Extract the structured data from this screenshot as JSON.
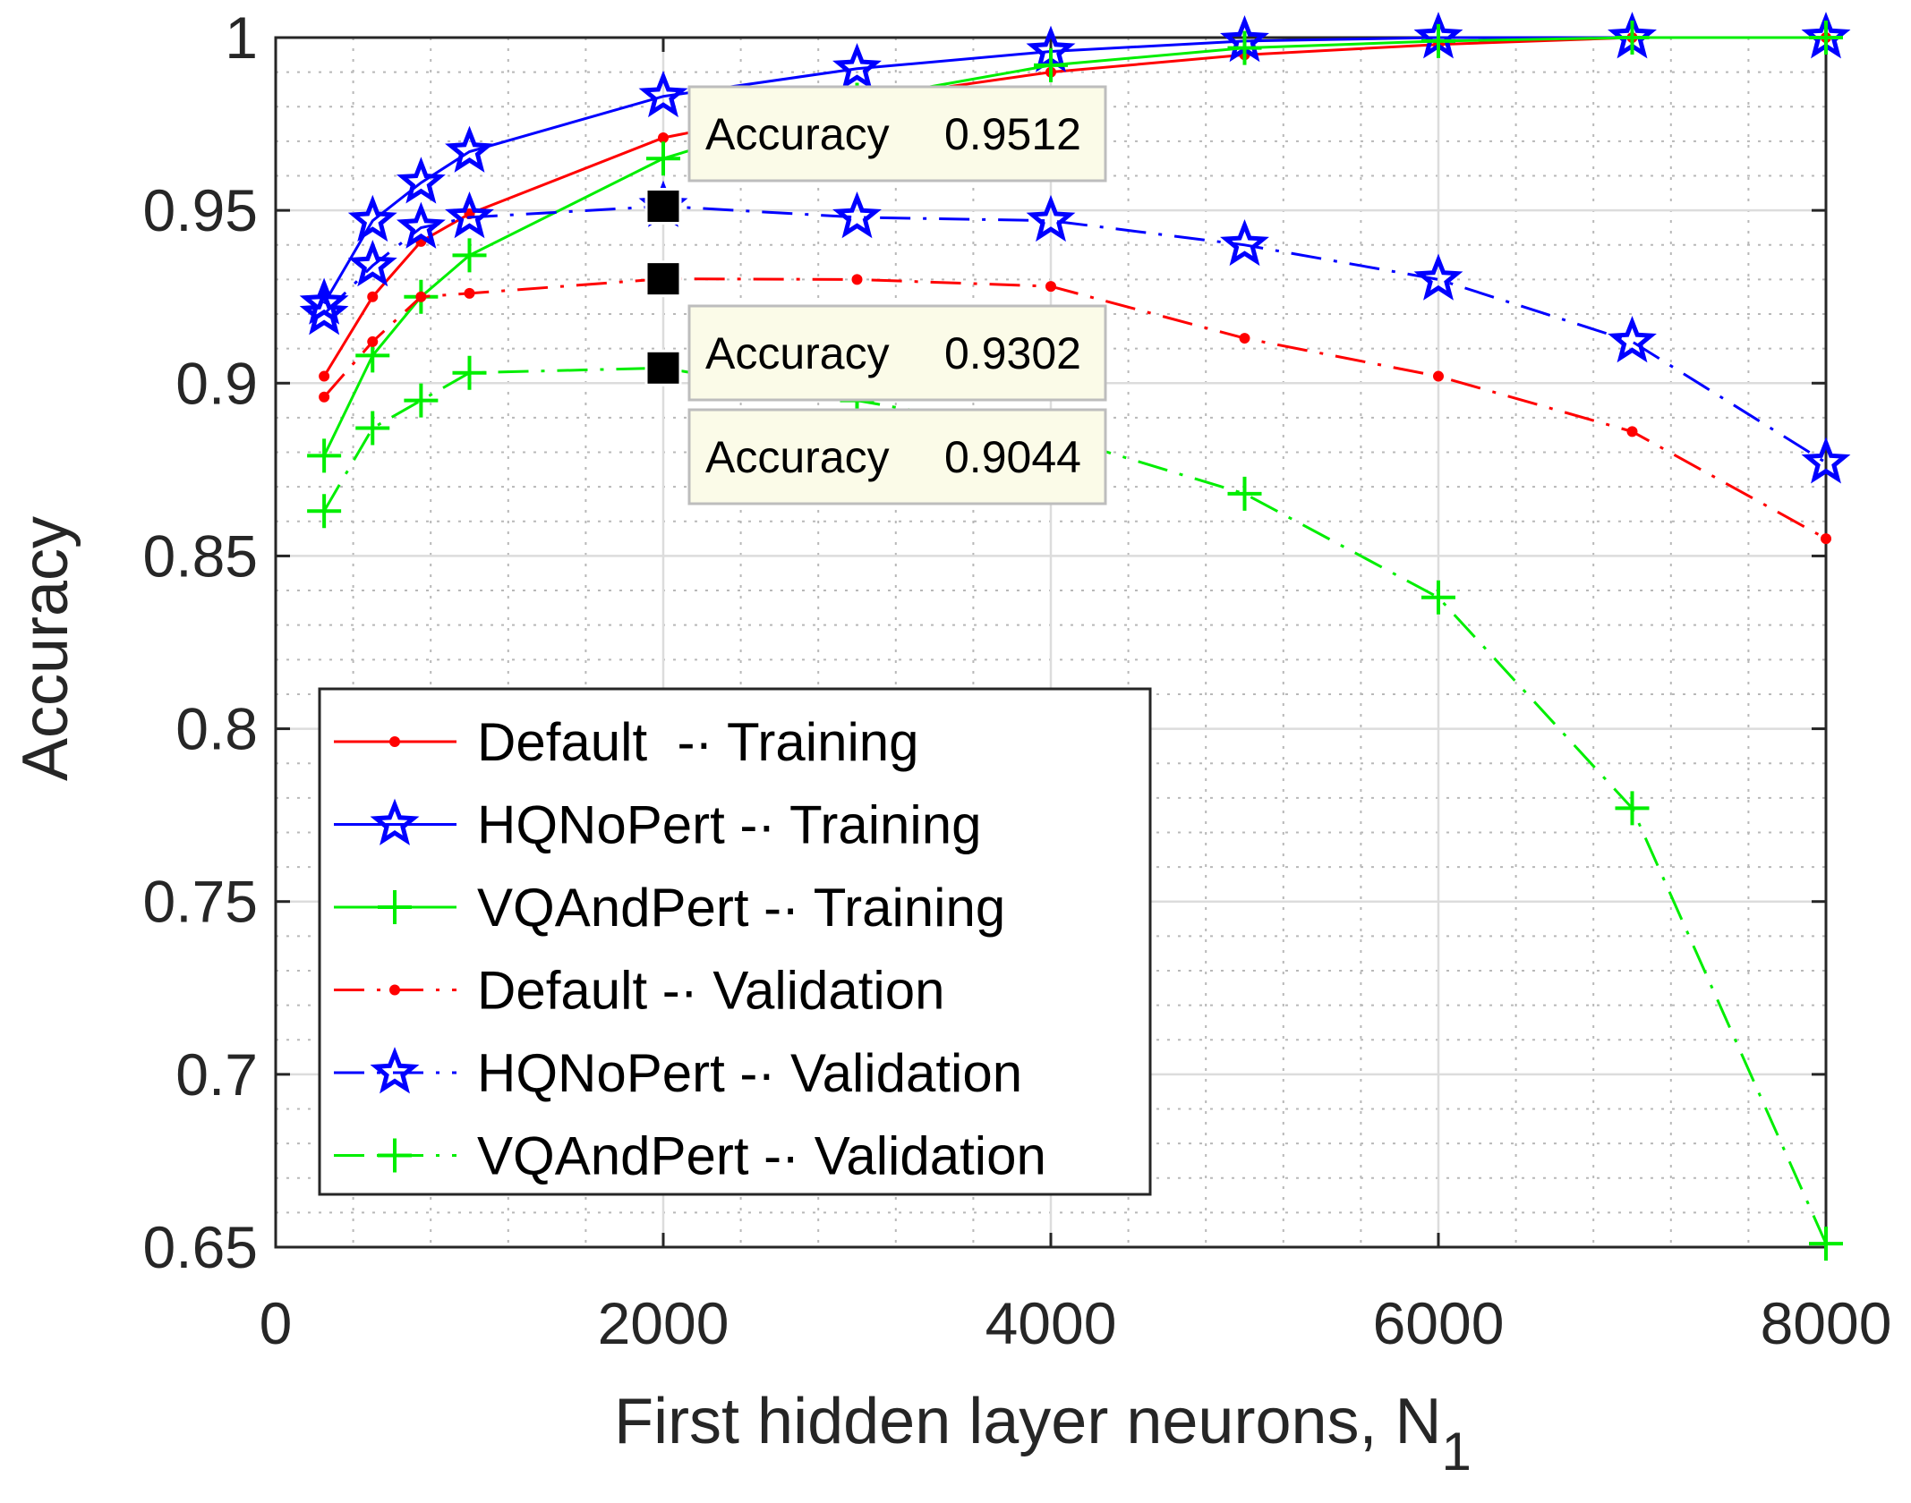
{
  "chart_data": {
    "type": "line",
    "xlabel": "First hidden layer neurons, N",
    "xlabel_subscript": "1",
    "ylabel": "Accuracy",
    "xlim": [
      0,
      8000
    ],
    "ylim": [
      0.65,
      1
    ],
    "xticks": [
      0,
      2000,
      4000,
      6000,
      8000
    ],
    "xtick_labels": [
      "0",
      "2000",
      "4000",
      "6000",
      "8000"
    ],
    "yticks": [
      0.65,
      0.7,
      0.75,
      0.8,
      0.85,
      0.9,
      0.95,
      1
    ],
    "ytick_labels": [
      "0.65",
      "0.7",
      "0.75",
      "0.8",
      "0.85",
      "0.9",
      "0.95",
      "1"
    ],
    "grid": "major and minor",
    "legend_position": "lower-left",
    "series": [
      {
        "name": "Default  -· Training",
        "color": "#ff0000",
        "marker": "dot",
        "style": "solid",
        "x": [
          250,
          500,
          750,
          1000,
          2000,
          3000,
          4000,
          5000,
          6000,
          7000,
          8000
        ],
        "y": [
          0.902,
          0.925,
          0.941,
          0.949,
          0.971,
          0.982,
          0.99,
          0.995,
          0.998,
          1.0,
          1.0
        ]
      },
      {
        "name": "HQNoPert -· Training",
        "color": "#0000ff",
        "marker": "star",
        "style": "solid",
        "x": [
          250,
          500,
          750,
          1000,
          2000,
          3000,
          4000,
          5000,
          6000,
          7000,
          8000
        ],
        "y": [
          0.923,
          0.947,
          0.958,
          0.967,
          0.983,
          0.991,
          0.996,
          0.999,
          1.0,
          1.0,
          1.0
        ]
      },
      {
        "name": "VQAndPert -· Training",
        "color": "#00ee00",
        "marker": "plus",
        "style": "solid",
        "x": [
          250,
          500,
          750,
          1000,
          2000,
          3000,
          4000,
          5000,
          6000,
          7000,
          8000
        ],
        "y": [
          0.879,
          0.908,
          0.925,
          0.937,
          0.965,
          0.982,
          0.992,
          0.997,
          0.999,
          1.0,
          1.0
        ]
      },
      {
        "name": "Default -· Validation",
        "color": "#ff0000",
        "marker": "dot",
        "style": "dashed",
        "x": [
          250,
          500,
          750,
          1000,
          2000,
          3000,
          4000,
          5000,
          6000,
          7000,
          8000
        ],
        "y": [
          0.896,
          0.912,
          0.925,
          0.926,
          0.9302,
          0.93,
          0.928,
          0.913,
          0.902,
          0.886,
          0.855
        ]
      },
      {
        "name": "HQNoPert -· Validation",
        "color": "#0000ff",
        "marker": "star",
        "style": "dashed",
        "x": [
          250,
          500,
          750,
          1000,
          2000,
          3000,
          4000,
          5000,
          6000,
          7000,
          8000
        ],
        "y": [
          0.92,
          0.934,
          0.945,
          0.948,
          0.9512,
          0.948,
          0.947,
          0.94,
          0.93,
          0.912,
          0.877
        ]
      },
      {
        "name": "VQAndPert -· Validation",
        "color": "#00ee00",
        "marker": "plus",
        "style": "dashed",
        "x": [
          250,
          500,
          750,
          1000,
          2000,
          3000,
          4000,
          5000,
          6000,
          7000,
          8000
        ],
        "y": [
          0.863,
          0.887,
          0.895,
          0.903,
          0.9044,
          0.895,
          0.885,
          0.868,
          0.838,
          0.777,
          0.651
        ]
      }
    ],
    "datatips": [
      {
        "label": "Accuracy",
        "value": "0.9512",
        "x": 2000,
        "y": 0.9512
      },
      {
        "label": "Accuracy",
        "value": "0.9302",
        "x": 2000,
        "y": 0.9302
      },
      {
        "label": "Accuracy",
        "value": "0.9044",
        "x": 2000,
        "y": 0.9044
      }
    ]
  }
}
